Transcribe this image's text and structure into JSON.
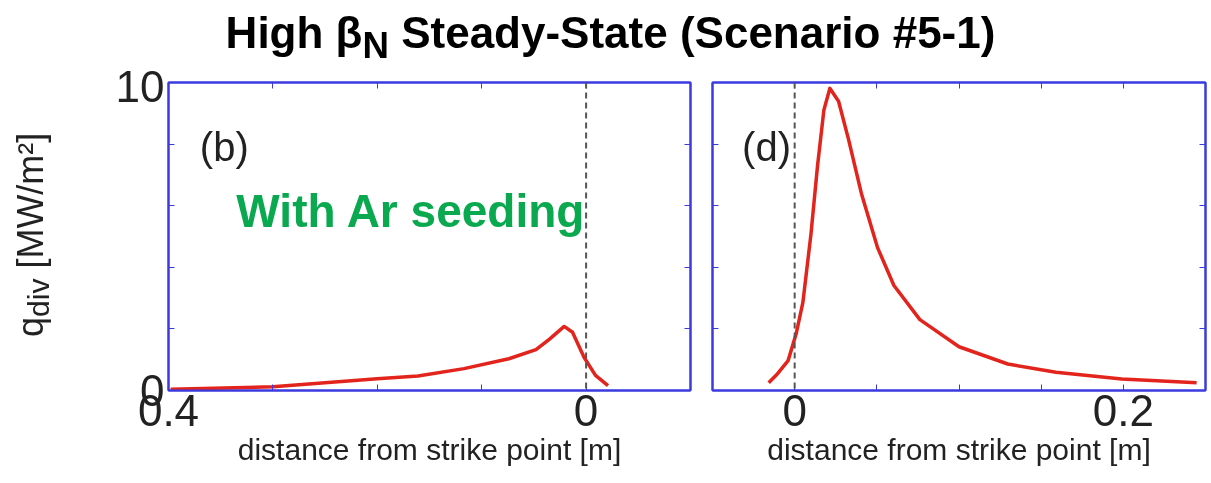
{
  "chart_data": [
    {
      "type": "line",
      "title": "High β$_{N}$ Steady-State (Scenario #5-1)",
      "xlabel": "distance from strike point [m]",
      "ylabel": "q$_{div}$ [MW/m²]",
      "annotations": [
        "(b)",
        "With Ar seeding"
      ],
      "xlim": [
        0.4,
        -0.1
      ],
      "xticks": [
        0.4,
        {
          "value": 0.3,
          "label": null
        },
        {
          "value": 0.2,
          "label": null
        },
        {
          "value": 0.1,
          "label": null
        },
        0,
        {
          "value": -0.1,
          "label": null
        }
      ],
      "ylim": [
        0,
        10
      ],
      "yticks": [
        0,
        {
          "value": 2,
          "label": null
        },
        {
          "value": 4,
          "label": null
        },
        {
          "value": 6,
          "label": null
        },
        {
          "value": 8,
          "label": null
        },
        10
      ],
      "ref_lines": [
        {
          "axis": "x",
          "value": 0,
          "color": "#555555",
          "line_style": "dashed"
        }
      ],
      "series": [
        {
          "color": "#e3241c",
          "x": [
            0.398,
            0.3,
            0.2,
            0.161,
            0.117,
            0.074,
            0.048,
            0.035,
            0.021,
            0.013,
            0.002,
            -0.009,
            -0.021
          ],
          "values": [
            0.04,
            0.12,
            0.38,
            0.47,
            0.71,
            1.03,
            1.33,
            1.67,
            2.08,
            1.89,
            1.08,
            0.49,
            0.16
          ]
        }
      ]
    },
    {
      "type": "line",
      "xlabel": "distance from strike point [m]",
      "annotations": [
        "(d)"
      ],
      "xlim": [
        -0.05,
        0.25
      ],
      "xticks": [
        {
          "value": -0.05,
          "label": null
        },
        0,
        {
          "value": 0.05,
          "label": null
        },
        {
          "value": 0.1,
          "label": null
        },
        {
          "value": 0.15,
          "label": null
        },
        0.2,
        {
          "value": 0.25,
          "label": null
        }
      ],
      "ylim": [
        0,
        10
      ],
      "yticks": [
        0,
        2,
        4,
        6,
        8,
        10
      ],
      "tick_labels": "x",
      "ref_lines": [
        {
          "axis": "x",
          "value": 0,
          "color": "#555555",
          "line_style": "dashed"
        }
      ],
      "series": [
        {
          "color": "#e3241c",
          "x": [
            -0.0158,
            -0.011,
            -0.004,
            0.001,
            0.005,
            0.0099,
            0.0139,
            0.0178,
            0.0214,
            0.0267,
            0.0327,
            0.0406,
            0.0505,
            0.0604,
            0.0762,
            0.1,
            0.1297,
            0.159,
            0.199,
            0.2446
          ],
          "values": [
            0.25,
            0.51,
            0.97,
            1.86,
            2.86,
            5.07,
            7.29,
            9.11,
            9.81,
            9.39,
            8.17,
            6.4,
            4.63,
            3.41,
            2.3,
            1.42,
            0.86,
            0.59,
            0.37,
            0.25
          ]
        }
      ]
    }
  ]
}
